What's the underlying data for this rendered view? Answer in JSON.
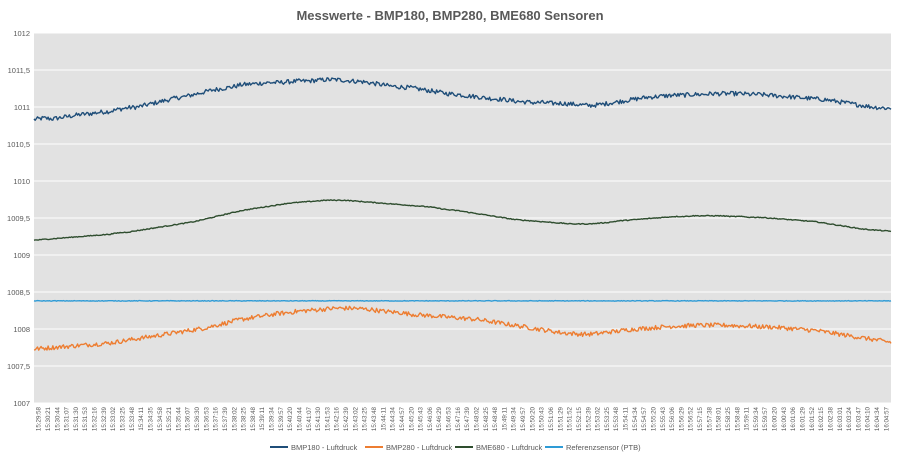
{
  "chart_data": {
    "type": "line",
    "title": "Messwerte - BMP180, BMP280, BME680 Sensoren",
    "xlabel": "",
    "ylabel": "",
    "ylim": [
      1007,
      1012
    ],
    "y_ticks": [
      "1007",
      "1007,5",
      "1008",
      "1008,5",
      "1009",
      "1009,5",
      "1010",
      "1010,5",
      "1011",
      "1011,5",
      "1012"
    ],
    "y_tick_values": [
      1007,
      1007.5,
      1008,
      1008.5,
      1009,
      1009.5,
      1010,
      1010.5,
      1011,
      1011.5,
      1012
    ],
    "x_ticks": [
      "15:29:58",
      "15:30:21",
      "15:30:44",
      "15:31:07",
      "15:31:30",
      "15:31:53",
      "15:32:16",
      "15:32:39",
      "15:33:02",
      "15:33:25",
      "15:33:48",
      "15:34:11",
      "15:34:35",
      "15:34:58",
      "15:35:21",
      "15:35:44",
      "15:36:07",
      "15:36:30",
      "15:36:53",
      "15:37:16",
      "15:37:39",
      "15:38:02",
      "15:38:25",
      "15:38:48",
      "15:39:11",
      "15:39:34",
      "15:39:57",
      "15:40:20",
      "15:40:44",
      "15:41:07",
      "15:41:30",
      "15:41:53",
      "15:42:16",
      "15:42:39",
      "15:43:02",
      "15:43:25",
      "15:43:48",
      "15:44:11",
      "15:44:34",
      "15:44:57",
      "15:45:20",
      "15:45:43",
      "15:46:06",
      "15:46:29",
      "15:46:53",
      "15:47:16",
      "15:47:39",
      "15:48:02",
      "15:48:25",
      "15:48:48",
      "15:49:11",
      "15:49:34",
      "15:49:57",
      "15:50:20",
      "15:50:43",
      "15:51:06",
      "15:51:29",
      "15:51:52",
      "15:52:15",
      "15:52:39",
      "15:53:02",
      "15:53:25",
      "15:53:48",
      "15:54:11",
      "15:54:34",
      "15:54:57",
      "15:55:20",
      "15:55:43",
      "15:56:06",
      "15:56:29",
      "15:56:52",
      "15:57:15",
      "15:57:38",
      "15:58:01",
      "15:58:25",
      "15:58:48",
      "15:59:11",
      "15:59:34",
      "15:59:57",
      "16:00:20",
      "16:00:43",
      "16:01:06",
      "16:01:29",
      "16:01:52",
      "16:02:15",
      "16:02:38",
      "16:03:01",
      "16:03:24",
      "16:03:47",
      "16:04:10",
      "16:04:34",
      "16:04:57"
    ],
    "grid": true,
    "legend_position": "bottom",
    "series": [
      {
        "name": "BMP180 - Luftdruck",
        "color": "#1f4e79",
        "values": [
          1010.83,
          1010.85,
          1010.84,
          1010.86,
          1010.88,
          1010.9,
          1010.91,
          1010.93,
          1010.94,
          1010.97,
          1010.99,
          1011.0,
          1011.03,
          1011.06,
          1011.09,
          1011.12,
          1011.14,
          1011.17,
          1011.2,
          1011.23,
          1011.25,
          1011.27,
          1011.3,
          1011.31,
          1011.32,
          1011.33,
          1011.33,
          1011.34,
          1011.35,
          1011.35,
          1011.36,
          1011.37,
          1011.37,
          1011.36,
          1011.35,
          1011.34,
          1011.32,
          1011.3,
          1011.28,
          1011.27,
          1011.26,
          1011.24,
          1011.22,
          1011.2,
          1011.18,
          1011.17,
          1011.15,
          1011.14,
          1011.12,
          1011.11,
          1011.1,
          1011.08,
          1011.07,
          1011.06,
          1011.06,
          1011.05,
          1011.05,
          1011.04,
          1011.03,
          1011.02,
          1011.03,
          1011.05,
          1011.07,
          1011.09,
          1011.11,
          1011.13,
          1011.14,
          1011.15,
          1011.16,
          1011.16,
          1011.17,
          1011.17,
          1011.18,
          1011.18,
          1011.18,
          1011.18,
          1011.17,
          1011.17,
          1011.16,
          1011.15,
          1011.14,
          1011.13,
          1011.12,
          1011.11,
          1011.1,
          1011.08,
          1011.06,
          1011.04,
          1011.02,
          1011.0,
          1010.99,
          1010.98
        ]
      },
      {
        "name": "BMP280 - Luftdruck",
        "color": "#ed7d31",
        "values": [
          1007.73,
          1007.74,
          1007.75,
          1007.76,
          1007.77,
          1007.78,
          1007.79,
          1007.8,
          1007.81,
          1007.83,
          1007.85,
          1007.87,
          1007.89,
          1007.91,
          1007.93,
          1007.95,
          1007.97,
          1007.99,
          1008.01,
          1008.04,
          1008.07,
          1008.1,
          1008.13,
          1008.15,
          1008.17,
          1008.19,
          1008.21,
          1008.22,
          1008.24,
          1008.25,
          1008.26,
          1008.27,
          1008.28,
          1008.28,
          1008.28,
          1008.27,
          1008.26,
          1008.24,
          1008.23,
          1008.22,
          1008.2,
          1008.19,
          1008.18,
          1008.17,
          1008.16,
          1008.15,
          1008.14,
          1008.13,
          1008.11,
          1008.09,
          1008.07,
          1008.05,
          1008.03,
          1008.01,
          1007.99,
          1007.97,
          1007.95,
          1007.94,
          1007.93,
          1007.93,
          1007.94,
          1007.96,
          1007.97,
          1007.99,
          1008.0,
          1008.01,
          1008.02,
          1008.03,
          1008.04,
          1008.04,
          1008.05,
          1008.05,
          1008.05,
          1008.05,
          1008.05,
          1008.04,
          1008.04,
          1008.03,
          1008.03,
          1008.02,
          1008.01,
          1008.0,
          1007.99,
          1007.98,
          1007.96,
          1007.94,
          1007.92,
          1007.9,
          1007.88,
          1007.86,
          1007.84,
          1007.82
        ]
      },
      {
        "name": "BME680 - Luftdruck",
        "color": "#2e4d2e",
        "values": [
          1009.2,
          1009.21,
          1009.22,
          1009.23,
          1009.24,
          1009.25,
          1009.26,
          1009.27,
          1009.28,
          1009.3,
          1009.31,
          1009.33,
          1009.35,
          1009.37,
          1009.39,
          1009.41,
          1009.43,
          1009.45,
          1009.48,
          1009.51,
          1009.54,
          1009.57,
          1009.6,
          1009.62,
          1009.64,
          1009.66,
          1009.68,
          1009.7,
          1009.71,
          1009.72,
          1009.73,
          1009.74,
          1009.74,
          1009.74,
          1009.73,
          1009.72,
          1009.71,
          1009.7,
          1009.69,
          1009.68,
          1009.67,
          1009.66,
          1009.65,
          1009.63,
          1009.61,
          1009.6,
          1009.58,
          1009.56,
          1009.54,
          1009.52,
          1009.5,
          1009.48,
          1009.47,
          1009.46,
          1009.45,
          1009.44,
          1009.43,
          1009.42,
          1009.42,
          1009.42,
          1009.43,
          1009.44,
          1009.46,
          1009.47,
          1009.48,
          1009.49,
          1009.5,
          1009.51,
          1009.52,
          1009.52,
          1009.53,
          1009.53,
          1009.53,
          1009.53,
          1009.52,
          1009.52,
          1009.51,
          1009.51,
          1009.5,
          1009.49,
          1009.48,
          1009.47,
          1009.46,
          1009.45,
          1009.43,
          1009.41,
          1009.39,
          1009.37,
          1009.35,
          1009.34,
          1009.33,
          1009.32
        ]
      },
      {
        "name": "Referenzsensor (PTB)",
        "color": "#2e9bd6",
        "values": [
          1008.38,
          1008.38,
          1008.38,
          1008.38,
          1008.38,
          1008.38,
          1008.38,
          1008.38,
          1008.38,
          1008.38,
          1008.38,
          1008.38,
          1008.38,
          1008.38,
          1008.38,
          1008.38,
          1008.38,
          1008.38,
          1008.38,
          1008.38,
          1008.38,
          1008.38,
          1008.38,
          1008.38,
          1008.38,
          1008.38,
          1008.38,
          1008.38,
          1008.38,
          1008.38,
          1008.38,
          1008.38,
          1008.38,
          1008.38,
          1008.38,
          1008.38,
          1008.38,
          1008.38,
          1008.38,
          1008.38,
          1008.38,
          1008.38,
          1008.38,
          1008.38,
          1008.38,
          1008.38,
          1008.38,
          1008.38,
          1008.38,
          1008.38,
          1008.38,
          1008.38,
          1008.38,
          1008.38,
          1008.38,
          1008.38,
          1008.38,
          1008.38,
          1008.38,
          1008.38,
          1008.38,
          1008.38,
          1008.38,
          1008.38,
          1008.38,
          1008.38,
          1008.38,
          1008.38,
          1008.38,
          1008.38,
          1008.38,
          1008.38,
          1008.38,
          1008.38,
          1008.38,
          1008.38,
          1008.38,
          1008.38,
          1008.38,
          1008.38,
          1008.38,
          1008.38,
          1008.38,
          1008.38,
          1008.38,
          1008.38,
          1008.38,
          1008.38,
          1008.38,
          1008.38,
          1008.38,
          1008.38
        ]
      }
    ]
  }
}
